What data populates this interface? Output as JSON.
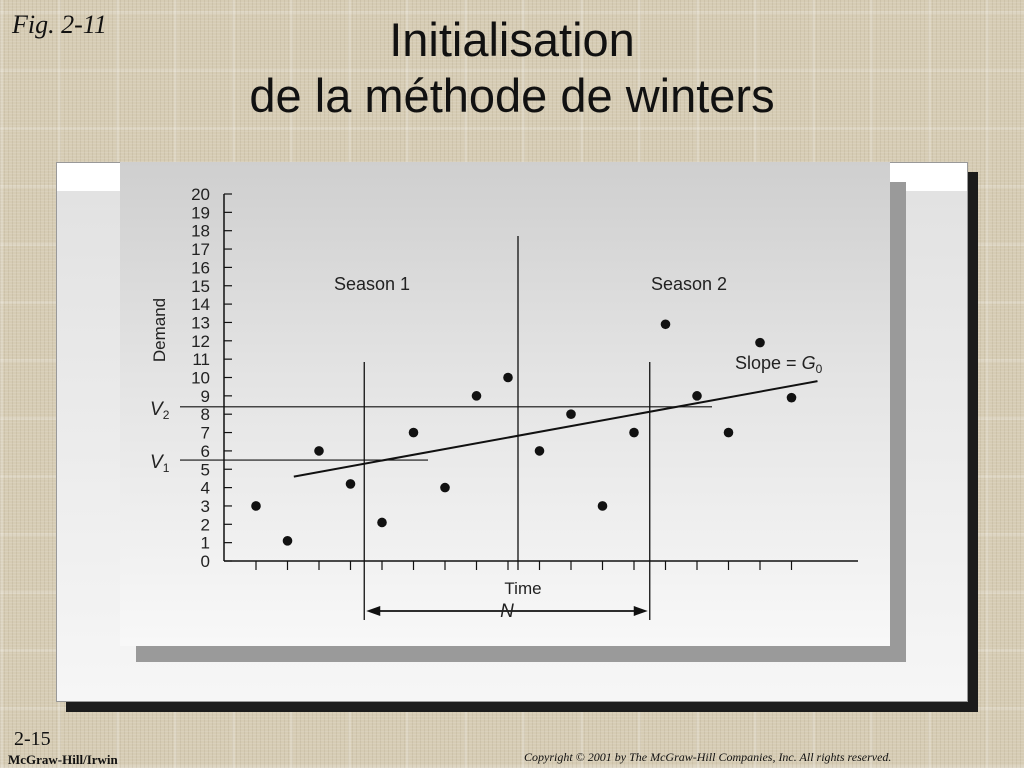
{
  "fig_label": "Fig. 2-11",
  "title_line1": "Initialisation",
  "title_line2": "de la méthode de winters",
  "slide_number": "2-15",
  "publisher": "McGraw-Hill/Irwin",
  "copyright": "Copyright © 2001 by The McGraw-Hill Companies, Inc.  All rights reserved.",
  "chart_data": {
    "type": "scatter",
    "title": "",
    "xlabel": "Time",
    "ylabel": "Demand",
    "ylim": [
      0,
      20
    ],
    "yticks": [
      0,
      1,
      2,
      3,
      4,
      5,
      6,
      7,
      8,
      9,
      10,
      11,
      12,
      13,
      14,
      15,
      16,
      17,
      18,
      19,
      20
    ],
    "x": [
      1,
      2,
      3,
      4,
      5,
      6,
      7,
      8,
      9,
      10,
      11,
      12,
      13,
      14,
      15,
      16,
      17,
      18
    ],
    "y": [
      3,
      1.1,
      6,
      4.2,
      2.1,
      7,
      4,
      9,
      10,
      6,
      8,
      3,
      7,
      12.9,
      9,
      7,
      11.9,
      8.9
    ],
    "season_labels": [
      "Season 1",
      "Season 2"
    ],
    "trend_line": {
      "label_text": "Slope = ",
      "label_symbol": "G",
      "label_sub": "0",
      "x_start": 2.2,
      "y_start": 4.6,
      "x_end": 18,
      "y_end": 9.8
    },
    "v_levels": [
      {
        "letter": "V",
        "sub": "1",
        "value": 5.5
      },
      {
        "letter": "V",
        "sub": "2",
        "value": 8.4
      }
    ],
    "dimension": {
      "label": "N"
    },
    "grid": false,
    "colors": {
      "points": "#111111",
      "lines": "#111111"
    }
  }
}
